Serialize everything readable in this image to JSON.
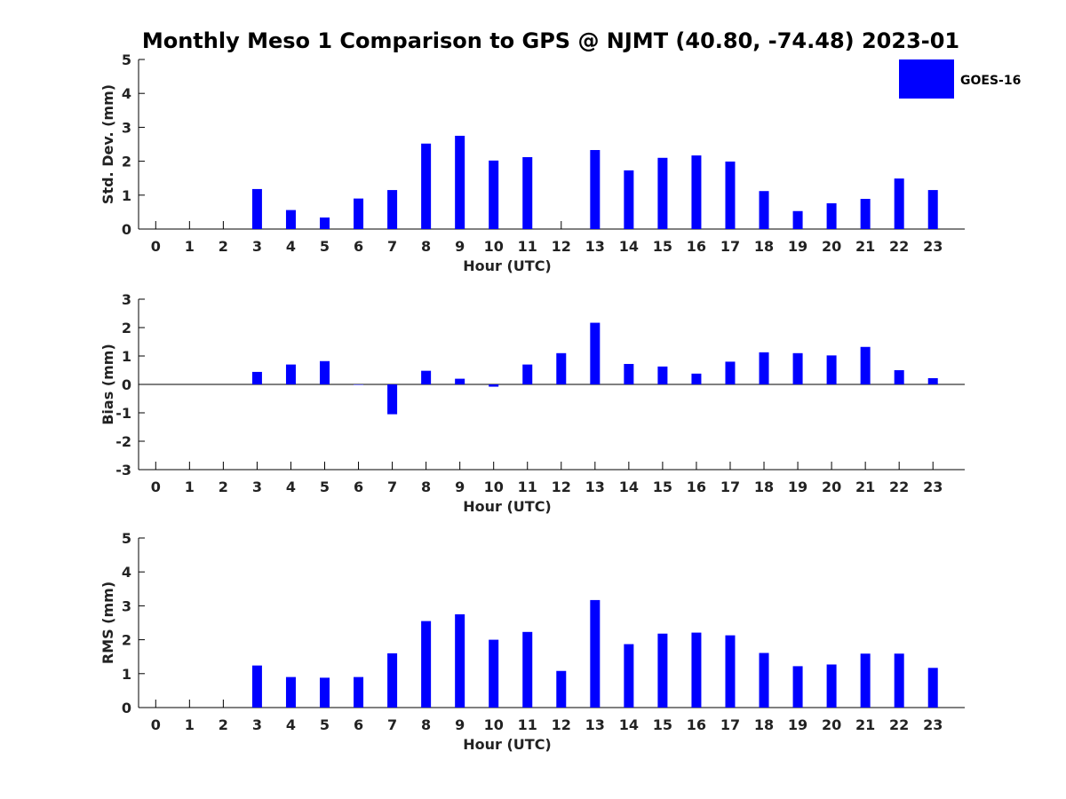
{
  "title": "Monthly Meso 1 Comparison to GPS @ NJMT (40.80, -74.48) 2023-01",
  "bar_color": "#0000ff",
  "legend": {
    "label": "GOES-16",
    "placement": "top-right"
  },
  "chart_data": [
    {
      "type": "bar",
      "categories": [
        "0",
        "1",
        "2",
        "3",
        "4",
        "5",
        "6",
        "7",
        "8",
        "9",
        "10",
        "11",
        "12",
        "13",
        "14",
        "15",
        "16",
        "17",
        "18",
        "19",
        "20",
        "21",
        "22",
        "23"
      ],
      "series": [
        {
          "name": "GOES-16",
          "values": [
            null,
            null,
            null,
            1.18,
            0.56,
            0.34,
            0.9,
            1.15,
            2.52,
            2.75,
            2.02,
            2.12,
            null,
            2.33,
            1.73,
            2.1,
            2.17,
            1.99,
            1.12,
            0.53,
            0.76,
            0.89,
            1.49,
            1.15
          ]
        }
      ],
      "xlabel": "Hour (UTC)",
      "ylabel": "Std. Dev. (mm)",
      "ylim": [
        0,
        5
      ],
      "yticks": [
        0,
        1,
        2,
        3,
        4,
        5
      ]
    },
    {
      "type": "bar",
      "categories": [
        "0",
        "1",
        "2",
        "3",
        "4",
        "5",
        "6",
        "7",
        "8",
        "9",
        "10",
        "11",
        "12",
        "13",
        "14",
        "15",
        "16",
        "17",
        "18",
        "19",
        "20",
        "21",
        "22",
        "23"
      ],
      "series": [
        {
          "name": "GOES-16",
          "values": [
            null,
            null,
            null,
            0.44,
            0.7,
            0.82,
            0.0,
            -1.05,
            0.48,
            0.2,
            -0.08,
            0.7,
            1.1,
            2.17,
            0.72,
            0.63,
            0.38,
            0.8,
            1.13,
            1.1,
            1.02,
            1.32,
            0.5,
            0.22
          ]
        }
      ],
      "xlabel": "Hour (UTC)",
      "ylabel": "Bias (mm)",
      "ylim": [
        -3,
        3
      ],
      "yticks": [
        -3,
        -2,
        -1,
        0,
        1,
        2,
        3
      ]
    },
    {
      "type": "bar",
      "categories": [
        "0",
        "1",
        "2",
        "3",
        "4",
        "5",
        "6",
        "7",
        "8",
        "9",
        "10",
        "11",
        "12",
        "13",
        "14",
        "15",
        "16",
        "17",
        "18",
        "19",
        "20",
        "21",
        "22",
        "23"
      ],
      "series": [
        {
          "name": "GOES-16",
          "values": [
            null,
            null,
            null,
            1.24,
            0.9,
            0.88,
            0.9,
            1.6,
            2.55,
            2.75,
            2.0,
            2.23,
            1.08,
            3.17,
            1.87,
            2.18,
            2.21,
            2.13,
            1.61,
            1.22,
            1.27,
            1.59,
            1.59,
            1.17
          ]
        }
      ],
      "xlabel": "Hour (UTC)",
      "ylabel": "RMS (mm)",
      "ylim": [
        0,
        5
      ],
      "yticks": [
        0,
        1,
        2,
        3,
        4,
        5
      ]
    }
  ]
}
